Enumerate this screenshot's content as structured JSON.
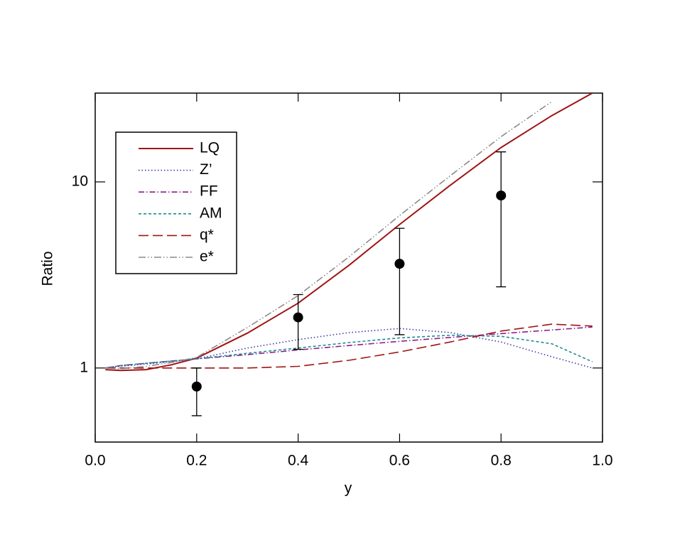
{
  "chart_data": {
    "type": "line",
    "x_label": "y",
    "y_label": "Ratio",
    "log_y": true,
    "xlim": [
      0,
      1
    ],
    "ylim": [
      0.4,
      30
    ],
    "xticks": [
      {
        "value": 0,
        "label": "0.0"
      },
      0.2,
      0.4,
      0.6,
      0.8,
      {
        "value": 1,
        "label": "1.0"
      }
    ],
    "yticks": [
      1,
      10
    ],
    "legend": "upper left",
    "x": [
      0.02,
      0.05,
      0.1,
      0.15,
      0.2,
      0.3,
      0.4,
      0.5,
      0.6,
      0.7,
      0.8,
      0.9,
      0.98
    ],
    "series": [
      {
        "name": "LQ",
        "color": "#a01414",
        "dash": "none",
        "values": [
          0.98,
          0.97,
          0.98,
          1.04,
          1.13,
          1.54,
          2.23,
          3.56,
          5.9,
          9.6,
          15.3,
          22.7,
          30
        ]
      },
      {
        "name": "Z’",
        "color": "#3a3aa8",
        "dash": "1.5,3",
        "values": [
          1.0,
          1.02,
          1.05,
          1.08,
          1.12,
          1.28,
          1.42,
          1.55,
          1.63,
          1.55,
          1.38,
          1.15,
          1.0
        ]
      },
      {
        "name": "FF",
        "color": "#8e1f8e",
        "dash": "8,3,1.5,3",
        "values": [
          1.0,
          1.03,
          1.06,
          1.09,
          1.12,
          1.18,
          1.25,
          1.32,
          1.39,
          1.46,
          1.53,
          1.6,
          1.66
        ]
      },
      {
        "name": "AM",
        "color": "#1f8e8e",
        "dash": "4,3",
        "values": [
          1.0,
          1.03,
          1.06,
          1.09,
          1.12,
          1.2,
          1.28,
          1.37,
          1.45,
          1.5,
          1.48,
          1.35,
          1.08
        ]
      },
      {
        "name": "q*",
        "color": "#a01414",
        "dash": "14,6",
        "values": [
          1.0,
          1.0,
          1.0,
          1.0,
          1.0,
          1.0,
          1.02,
          1.1,
          1.22,
          1.38,
          1.58,
          1.72,
          1.68
        ]
      },
      {
        "name": "e*",
        "color": "#8c8c8c",
        "dash": "10,3,1.5,3,1.5,3",
        "values": [
          1.0,
          0.99,
          1.02,
          1.07,
          1.14,
          1.65,
          2.45,
          3.95,
          6.6,
          10.8,
          17.5,
          27,
          null
        ]
      }
    ],
    "points": {
      "x": [
        0.2,
        0.4,
        0.6,
        0.8
      ],
      "values": [
        0.795,
        1.87,
        3.63,
        8.45
      ],
      "lower": [
        0.554,
        1.26,
        1.51,
        2.73
      ],
      "upper": [
        1.0,
        2.48,
        5.63,
        14.5
      ]
    }
  }
}
